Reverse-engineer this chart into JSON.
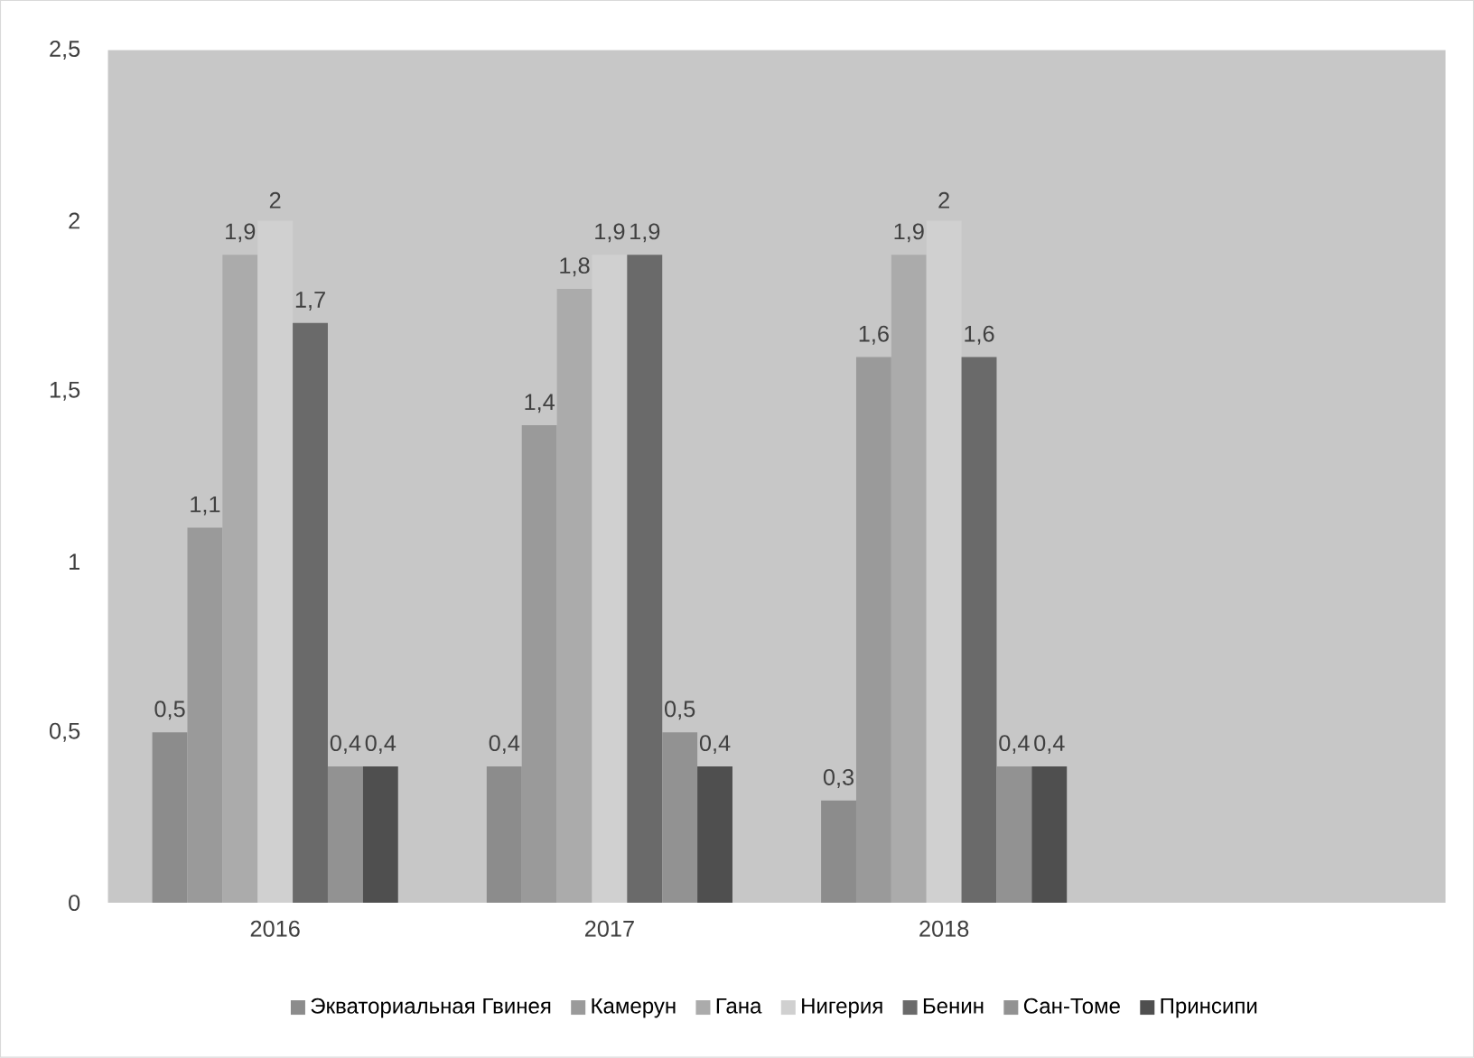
{
  "chart_data": {
    "type": "bar",
    "categories": [
      "2016",
      "2017",
      "2018",
      null
    ],
    "series": [
      {
        "name": "Экваториальная Гвинея",
        "color": "#8c8c8c",
        "values": [
          0.5,
          0.4,
          0.3,
          null
        ],
        "value_labels": [
          "0,5",
          "0,4",
          "0,3",
          null
        ]
      },
      {
        "name": "Камерун",
        "color": "#9a9a9a",
        "values": [
          1.1,
          1.4,
          1.6,
          null
        ],
        "value_labels": [
          "1,1",
          "1,4",
          "1,6",
          null
        ]
      },
      {
        "name": "Гана",
        "color": "#ababab",
        "values": [
          1.9,
          1.8,
          1.9,
          null
        ],
        "value_labels": [
          "1,9",
          "1,8",
          "1,9",
          null
        ]
      },
      {
        "name": "Нигерия",
        "color": "#d0d0d0",
        "values": [
          2,
          1.9,
          2,
          null
        ],
        "value_labels": [
          "2",
          "1,9",
          "2",
          null
        ]
      },
      {
        "name": "Бенин",
        "color": "#6a6a6a",
        "values": [
          1.7,
          1.9,
          1.6,
          null
        ],
        "value_labels": [
          "1,7",
          "1,9",
          "1,6",
          null
        ]
      },
      {
        "name": "Сан-Томе",
        "color": "#929292",
        "values": [
          0.4,
          0.5,
          0.4,
          null
        ],
        "value_labels": [
          "0,4",
          "0,5",
          "0,4",
          null
        ]
      },
      {
        "name": "Принсипи",
        "color": "#4f4f4f",
        "values": [
          0.4,
          0.4,
          0.4,
          null
        ],
        "value_labels": [
          "0,4",
          "0,4",
          "0,4",
          null
        ]
      }
    ],
    "ylim": [
      0,
      2.5
    ],
    "yticks": [
      0,
      {
        "value": 0.5,
        "label": "0,5"
      },
      1,
      {
        "value": 1.5,
        "label": "1,5"
      },
      2,
      {
        "value": 2.5,
        "label": "2,5"
      }
    ],
    "grid": false,
    "legend": "bottom"
  }
}
